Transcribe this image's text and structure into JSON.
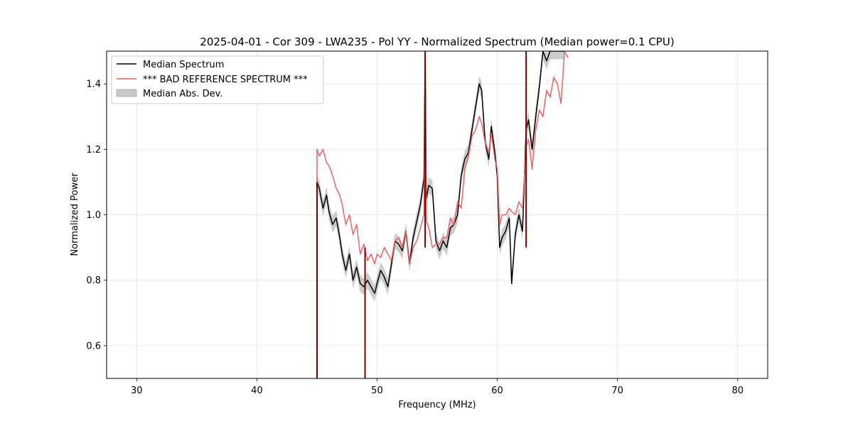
{
  "chart_data": {
    "type": "line",
    "title": "2025-04-01 - Cor 309 - LWA235 - Pol YY - Normalized Spectrum (Median power=0.1 CPU)",
    "xlabel": "Frequency (MHz)",
    "ylabel": "Normalized Power",
    "xlim": [
      27.5,
      82.5
    ],
    "ylim": [
      0.5,
      1.5
    ],
    "xticks": [
      30,
      40,
      50,
      60,
      70,
      80
    ],
    "yticks": [
      0.6,
      0.8,
      1.0,
      1.2,
      1.4
    ],
    "grid": true,
    "legend_position": "top-left",
    "series": [
      {
        "name": "Median Spectrum",
        "color": "#000000",
        "x": [
          45.0,
          45.0,
          45.2,
          45.5,
          45.8,
          46.0,
          46.3,
          46.6,
          46.9,
          47.1,
          47.4,
          47.7,
          48.0,
          48.3,
          48.6,
          48.9,
          49.2,
          49.5,
          49.8,
          50.0,
          50.3,
          50.6,
          50.9,
          51.2,
          51.5,
          51.8,
          52.1,
          52.4,
          52.7,
          53.0,
          53.3,
          53.6,
          53.9,
          54.0,
          54.1,
          54.3,
          54.6,
          54.9,
          55.2,
          55.5,
          55.8,
          56.1,
          56.4,
          56.7,
          57.0,
          57.3,
          57.6,
          57.9,
          58.2,
          58.5,
          58.7,
          59.0,
          59.3,
          59.5,
          59.8,
          60.0,
          60.2,
          60.4,
          60.7,
          61.0,
          61.2,
          61.5,
          61.8,
          62.1,
          62.4,
          62.6,
          62.9,
          63.2,
          63.5,
          63.8,
          64.1,
          64.4,
          64.7,
          65.0,
          65.3,
          65.6
        ],
        "y": [
          0.5,
          1.1,
          1.08,
          1.02,
          1.06,
          1.01,
          0.97,
          0.99,
          0.93,
          0.88,
          0.83,
          0.88,
          0.8,
          0.84,
          0.79,
          0.78,
          0.8,
          0.78,
          0.76,
          0.79,
          0.83,
          0.81,
          0.78,
          0.85,
          0.92,
          0.91,
          0.89,
          0.95,
          0.85,
          0.93,
          0.98,
          1.03,
          1.11,
          1.5,
          1.05,
          1.09,
          1.08,
          0.92,
          0.89,
          0.92,
          0.9,
          0.96,
          0.97,
          1.0,
          1.12,
          1.17,
          1.19,
          1.26,
          1.33,
          1.4,
          1.38,
          1.22,
          1.17,
          1.27,
          1.19,
          1.12,
          0.9,
          0.93,
          0.95,
          0.99,
          0.79,
          0.94,
          1.0,
          0.95,
          1.26,
          1.29,
          1.2,
          1.3,
          1.39,
          1.5,
          1.47,
          1.5,
          1.5,
          1.5,
          1.5,
          1.5
        ],
        "band_halfwidth": 0.025
      },
      {
        "name": "*** BAD REFERENCE SPECTRUM ***",
        "color": "#f05a5a",
        "x": [
          45.0,
          45.0,
          45.2,
          45.5,
          45.8,
          46.0,
          46.3,
          46.6,
          46.9,
          47.1,
          47.4,
          47.7,
          48.0,
          48.3,
          48.6,
          48.9,
          49.2,
          49.5,
          49.8,
          50.0,
          50.3,
          50.6,
          50.9,
          51.2,
          51.5,
          51.8,
          52.1,
          52.4,
          52.7,
          53.0,
          53.3,
          53.6,
          53.9,
          54.0,
          54.1,
          54.3,
          54.6,
          54.9,
          55.2,
          55.5,
          55.8,
          56.1,
          56.4,
          56.7,
          57.0,
          57.3,
          57.6,
          57.9,
          58.2,
          58.5,
          58.7,
          59.0,
          59.3,
          59.5,
          59.8,
          60.0,
          60.2,
          60.4,
          60.7,
          61.0,
          61.2,
          61.5,
          61.8,
          62.1,
          62.4,
          62.6,
          62.9,
          63.2,
          63.5,
          63.8,
          64.1,
          64.4,
          64.7,
          65.0,
          65.3,
          65.6,
          65.9
        ],
        "y": [
          0.5,
          1.2,
          1.18,
          1.2,
          1.16,
          1.15,
          1.12,
          1.08,
          1.06,
          1.03,
          0.97,
          1.0,
          0.94,
          0.97,
          0.88,
          0.91,
          0.86,
          0.88,
          0.85,
          0.88,
          0.87,
          0.9,
          0.88,
          0.86,
          0.92,
          0.93,
          0.9,
          0.95,
          0.85,
          0.9,
          0.92,
          0.96,
          1.0,
          1.42,
          0.98,
          0.96,
          0.9,
          0.91,
          0.91,
          0.93,
          0.93,
          0.99,
          0.97,
          1.04,
          1.02,
          1.14,
          1.18,
          1.24,
          1.26,
          1.3,
          1.28,
          1.22,
          1.19,
          1.25,
          1.17,
          1.14,
          0.97,
          1.0,
          1.0,
          1.02,
          1.01,
          1.0,
          1.04,
          1.02,
          1.21,
          1.23,
          1.14,
          1.26,
          1.32,
          1.3,
          1.38,
          1.36,
          1.42,
          1.4,
          1.34,
          1.5,
          1.48
        ]
      },
      {
        "name": "Median Abs. Dev.",
        "color": "#bbbbbb"
      }
    ],
    "spikes": [
      {
        "x": 45.0,
        "y": [
          0.5,
          1.1
        ]
      },
      {
        "x": 49.0,
        "y": [
          0.5,
          0.9
        ]
      },
      {
        "x": 54.0,
        "y": [
          0.9,
          1.5
        ]
      },
      {
        "x": 62.4,
        "y": [
          0.9,
          1.5
        ]
      }
    ]
  }
}
